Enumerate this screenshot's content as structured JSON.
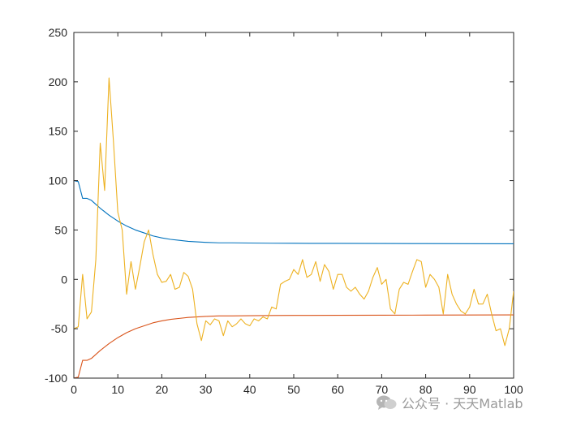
{
  "chart_data": {
    "type": "line",
    "xlim": [
      0,
      100
    ],
    "ylim": [
      -100,
      250
    ],
    "xticks": [
      "0",
      "10",
      "20",
      "30",
      "40",
      "50",
      "60",
      "70",
      "80",
      "90",
      "100"
    ],
    "yticks": [
      "-100",
      "-50",
      "0",
      "50",
      "100",
      "150",
      "200",
      "250"
    ],
    "grid": false,
    "series": [
      {
        "color": "#0072BD",
        "x": [
          0,
          1,
          2,
          3,
          4,
          5,
          6,
          8,
          10,
          12,
          14,
          16,
          18,
          20,
          22,
          24,
          26,
          28,
          30,
          33,
          36,
          40,
          45,
          50,
          60,
          70,
          80,
          90,
          100
        ],
        "y": [
          100,
          99,
          82,
          82,
          80,
          76,
          72,
          65,
          59,
          54,
          50,
          47,
          44,
          42,
          40.5,
          39.5,
          38.5,
          38,
          37.5,
          37,
          37,
          36.8,
          36.6,
          36.5,
          36.4,
          36.3,
          36.2,
          36.1,
          36
        ]
      },
      {
        "color": "#D95319",
        "x": [
          0,
          1,
          2,
          3,
          4,
          5,
          6,
          8,
          10,
          12,
          14,
          16,
          18,
          20,
          22,
          24,
          26,
          28,
          30,
          33,
          36,
          40,
          45,
          50,
          60,
          70,
          80,
          90,
          100
        ],
        "y": [
          -100,
          -99,
          -82,
          -82,
          -80,
          -76,
          -72,
          -65,
          -59,
          -54,
          -50,
          -47,
          -44,
          -42,
          -40.5,
          -39.5,
          -38.5,
          -38,
          -37.5,
          -37,
          -37,
          -36.8,
          -36.6,
          -36.5,
          -36.4,
          -36.3,
          -36.2,
          -36.1,
          -36
        ]
      },
      {
        "color": "#EDB120",
        "x": [
          0,
          1,
          2,
          3,
          4,
          5,
          6,
          7,
          8,
          9,
          10,
          11,
          12,
          13,
          14,
          15,
          16,
          17,
          18,
          19,
          20,
          21,
          22,
          23,
          24,
          25,
          26,
          27,
          28,
          29,
          30,
          31,
          32,
          33,
          34,
          35,
          36,
          37,
          38,
          39,
          40,
          41,
          42,
          43,
          44,
          45,
          46,
          47,
          48,
          49,
          50,
          51,
          52,
          53,
          54,
          55,
          56,
          57,
          58,
          59,
          60,
          61,
          62,
          63,
          64,
          65,
          66,
          67,
          68,
          69,
          70,
          71,
          72,
          73,
          74,
          75,
          76,
          77,
          78,
          79,
          80,
          81,
          82,
          83,
          84,
          85,
          86,
          87,
          88,
          89,
          90,
          91,
          92,
          93,
          94,
          95,
          96,
          97,
          98,
          99,
          100
        ],
        "y": [
          -50,
          -48,
          5,
          -40,
          -33,
          20,
          138,
          90,
          204,
          140,
          68,
          50,
          -15,
          18,
          -10,
          13,
          38,
          50,
          25,
          5,
          -3,
          -2,
          5,
          -10,
          -8,
          7,
          3,
          -10,
          -45,
          -62,
          -42,
          -46,
          -40,
          -42,
          -57,
          -42,
          -48,
          -45,
          -40,
          -45,
          -47,
          -40,
          -42,
          -38,
          -40,
          -28,
          -30,
          -5,
          -2,
          0,
          10,
          5,
          20,
          2,
          5,
          18,
          -2,
          15,
          8,
          -10,
          5,
          5,
          -8,
          -12,
          -8,
          -15,
          -20,
          -12,
          2,
          12,
          -5,
          0,
          -30,
          -35,
          -10,
          -3,
          -5,
          8,
          20,
          18,
          -8,
          5,
          0,
          -8,
          -35,
          5,
          -15,
          -25,
          -32,
          -35,
          -28,
          -10,
          -25,
          -25,
          -15,
          -35,
          -52,
          -50,
          -67,
          -50,
          -12
        ]
      }
    ]
  },
  "watermark": {
    "icon": "wechat-icon",
    "text": "公众号 · 天天Matlab"
  }
}
